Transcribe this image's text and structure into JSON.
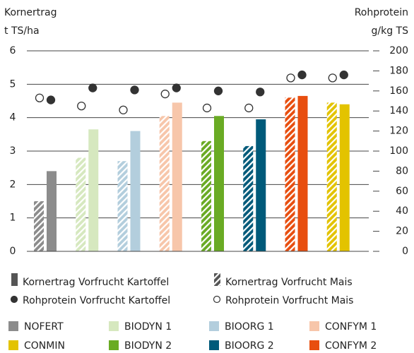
{
  "chart_data": {
    "type": "bar",
    "ylabel": [
      "Kornertrag",
      "t TS/ha"
    ],
    "y2label": [
      "Rohprotein",
      "g/kg TS"
    ],
    "categories": [
      "NOFERT",
      "BIODYN 1",
      "BIOORG 1",
      "CONFYM 1",
      "CONMIN",
      "BIODYN 2",
      "BIOORG 2",
      "CONFYM 2"
    ],
    "category_colors": [
      "#8c8c8c",
      "#d6e8bf",
      "#b3cedd",
      "#f7c6aa",
      "#e3c300",
      "#6aab24",
      "#005a7a",
      "#e84e0f"
    ],
    "chart_order": [
      0,
      1,
      2,
      3,
      5,
      6,
      7,
      4
    ],
    "series": [
      {
        "name": "Kornertrag Vorfrucht Kartoffel",
        "style": "solid",
        "color": "#555555",
        "values": [
          2.4,
          3.65,
          3.6,
          4.45,
          4.4,
          4.05,
          3.95,
          4.65
        ]
      },
      {
        "name": "Kornertrag Vorfrucht Mais",
        "style": "hatched",
        "color": "#555555",
        "values": [
          1.5,
          2.8,
          2.7,
          4.05,
          4.45,
          3.3,
          3.15,
          4.6
        ]
      },
      {
        "name": "Rohprotein Vorfrucht Kartoffel",
        "style": "filled-circle",
        "color": "#333333",
        "axis": "y2",
        "values": [
          151,
          163,
          161,
          163,
          176,
          160,
          159,
          176
        ]
      },
      {
        "name": "Rohprotein Vorfrucht Mais",
        "style": "open-circle",
        "color": "#333333",
        "axis": "y2",
        "values": [
          153,
          145,
          141,
          157,
          173,
          143,
          143,
          173
        ]
      }
    ],
    "ylim": [
      0,
      6
    ],
    "yticks": [
      0,
      1,
      2,
      3,
      4,
      5,
      6
    ],
    "y2lim": [
      0,
      200
    ],
    "y2ticks": [
      0,
      20,
      40,
      60,
      80,
      100,
      120,
      140,
      160,
      180,
      200
    ],
    "grid": true
  }
}
